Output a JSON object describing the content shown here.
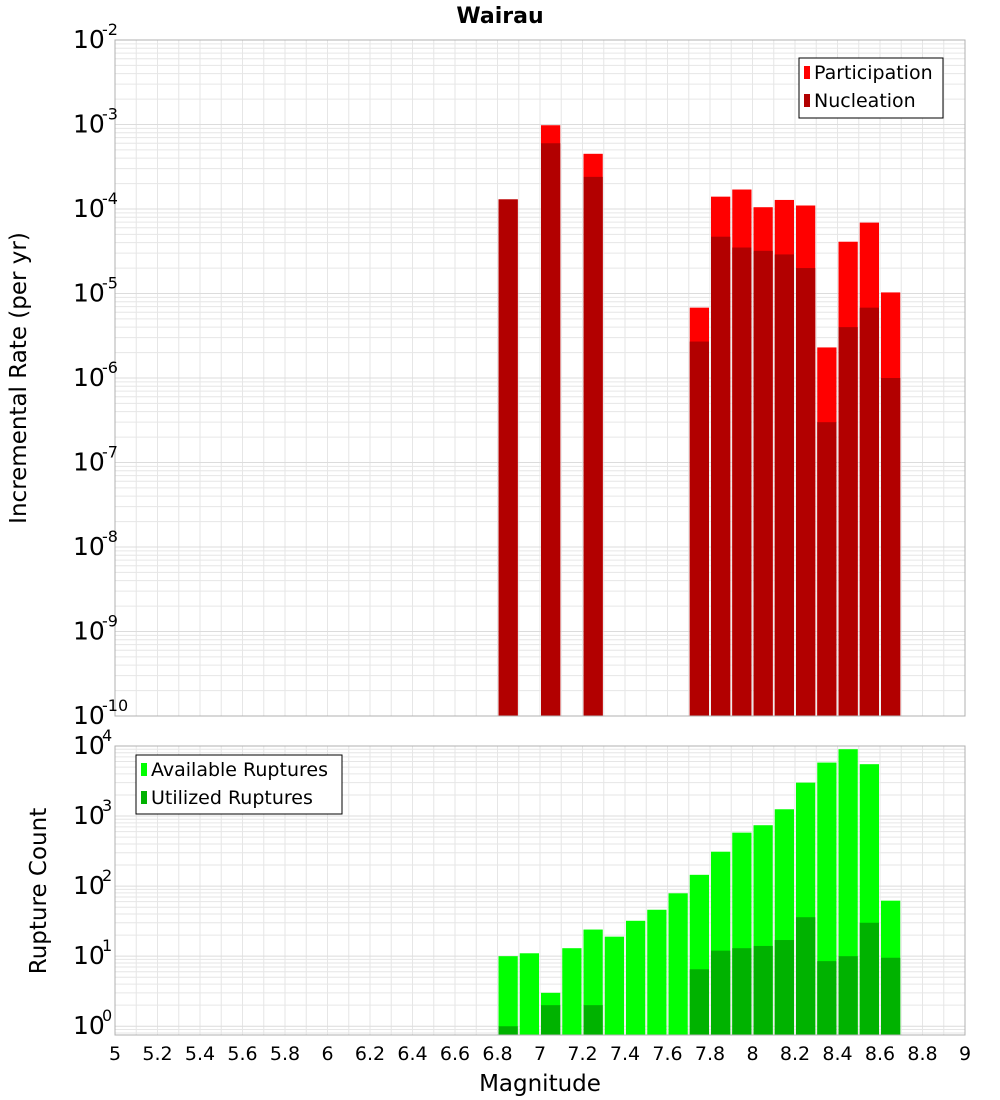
{
  "title": "Wairau",
  "xlabel": "Magnitude",
  "x_ticks": [
    "5",
    "5.2",
    "5.4",
    "5.6",
    "5.8",
    "6",
    "6.2",
    "6.4",
    "6.6",
    "6.8",
    "7",
    "7.2",
    "7.4",
    "7.6",
    "7.8",
    "8",
    "8.2",
    "8.4",
    "8.6",
    "8.8",
    "9"
  ],
  "chart_data": [
    {
      "type": "bar",
      "panel": "top",
      "ylabel": "Incremental Rate (per yr)",
      "y_scale": "log",
      "ylim": [
        1e-10,
        0.01
      ],
      "xlim": [
        5,
        9
      ],
      "y_ticks": [
        {
          "base": "10",
          "exp": "-10",
          "value": 1e-10
        },
        {
          "base": "10",
          "exp": "-9",
          "value": 1e-09
        },
        {
          "base": "10",
          "exp": "-8",
          "value": 1e-08
        },
        {
          "base": "10",
          "exp": "-7",
          "value": 1e-07
        },
        {
          "base": "10",
          "exp": "-6",
          "value": 1e-06
        },
        {
          "base": "10",
          "exp": "-5",
          "value": 1e-05
        },
        {
          "base": "10",
          "exp": "-4",
          "value": 0.0001
        },
        {
          "base": "10",
          "exp": "-3",
          "value": 0.001
        },
        {
          "base": "10",
          "exp": "-2",
          "value": 0.01
        }
      ],
      "grid": true,
      "legend_position": "top-right",
      "x": [
        6.85,
        7.05,
        7.25,
        7.75,
        7.85,
        7.95,
        8.05,
        8.15,
        8.25,
        8.35,
        8.45,
        8.55,
        8.65
      ],
      "series": [
        {
          "name": "Participation",
          "color": "#ff0000",
          "values": [
            0.00013,
            0.00098,
            0.00045,
            6.8e-06,
            0.00014,
            0.00017,
            0.000105,
            0.000128,
            0.00011,
            2.3e-06,
            4.1e-05,
            6.9e-05,
            1.03e-05
          ]
        },
        {
          "name": "Nucleation",
          "color": "#b20000",
          "values": [
            0.00013,
            0.0006,
            0.00024,
            2.7e-06,
            4.7e-05,
            3.5e-05,
            3.2e-05,
            2.9e-05,
            2e-05,
            3e-07,
            4e-06,
            6.8e-06,
            1e-06
          ]
        }
      ]
    },
    {
      "type": "bar",
      "panel": "bottom",
      "ylabel": "Rupture Count",
      "y_scale": "log",
      "ylim": [
        0.75,
        10000
      ],
      "xlim": [
        5,
        9
      ],
      "y_ticks": [
        {
          "base": "10",
          "exp": "0",
          "value": 1
        },
        {
          "base": "10",
          "exp": "1",
          "value": 10
        },
        {
          "base": "10",
          "exp": "2",
          "value": 100
        },
        {
          "base": "10",
          "exp": "3",
          "value": 1000
        },
        {
          "base": "10",
          "exp": "4",
          "value": 10000
        }
      ],
      "grid": true,
      "legend_position": "top-left",
      "x": [
        6.85,
        6.95,
        7.05,
        7.15,
        7.25,
        7.35,
        7.45,
        7.55,
        7.65,
        7.75,
        7.85,
        7.95,
        8.05,
        8.15,
        8.25,
        8.35,
        8.45,
        8.55,
        8.65
      ],
      "series": [
        {
          "name": "Available Ruptures",
          "color": "#00ff00",
          "values": [
            10,
            11,
            3,
            13,
            24,
            19,
            32,
            46,
            79,
            145,
            310,
            580,
            740,
            1250,
            3000,
            5800,
            9000,
            5500,
            62
          ]
        },
        {
          "name": "Utilized Ruptures",
          "color": "#00b200",
          "values": [
            1,
            0,
            2,
            0,
            2,
            0,
            0,
            0,
            0,
            6.5,
            12,
            13,
            14,
            17,
            36,
            8.5,
            10,
            30,
            9.5
          ]
        }
      ]
    }
  ],
  "colors": {
    "grid": "#e6e6e6",
    "frame": "#b0b0b0",
    "text": "#000000"
  }
}
